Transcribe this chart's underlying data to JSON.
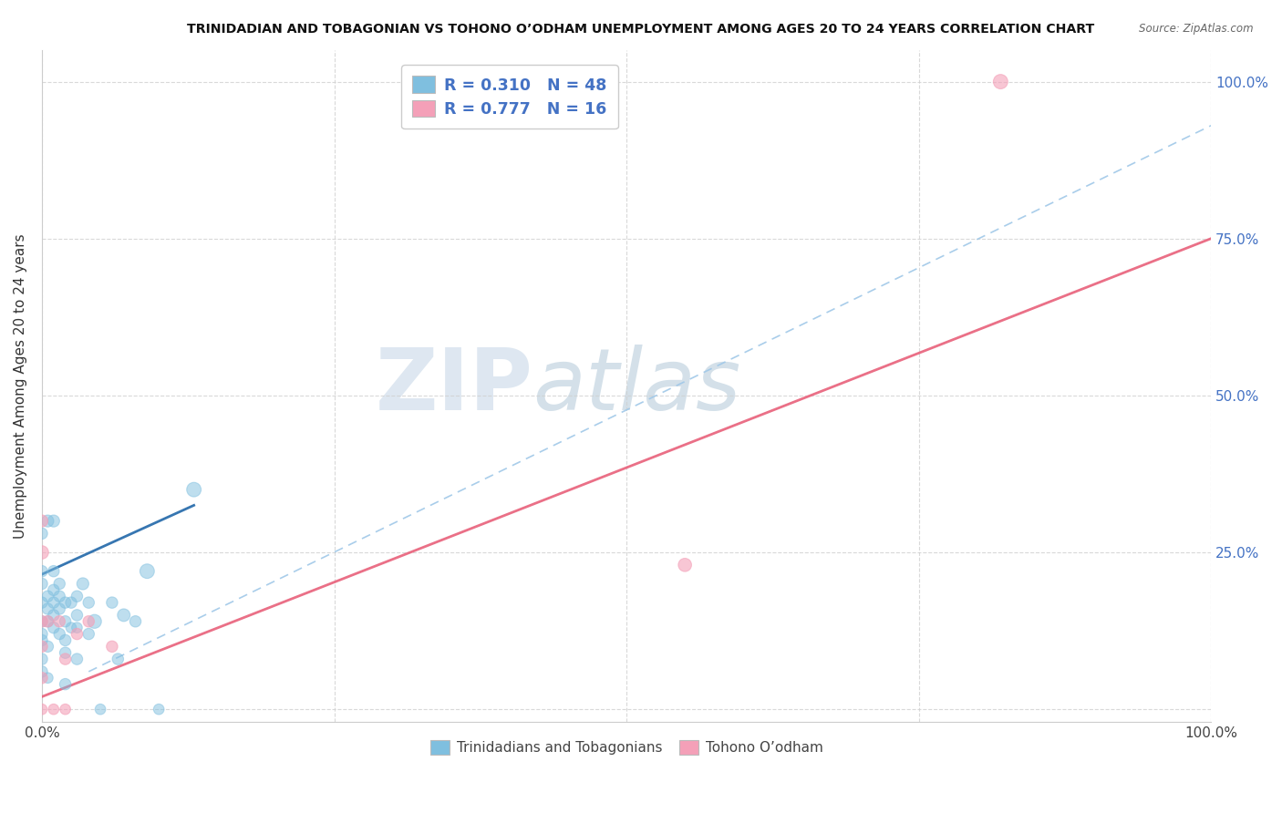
{
  "title": "TRINIDADIAN AND TOBAGONIAN VS TOHONO O’ODHAM UNEMPLOYMENT AMONG AGES 20 TO 24 YEARS CORRELATION CHART",
  "source": "Source: ZipAtlas.com",
  "ylabel": "Unemployment Among Ages 20 to 24 years",
  "legend_blue_r": "R = 0.310",
  "legend_blue_n": "N = 48",
  "legend_pink_r": "R = 0.777",
  "legend_pink_n": "N = 16",
  "legend_label_blue": "Trinidadians and Tobagonians",
  "legend_label_pink": "Tohono O’odham",
  "blue_scatter_x": [
    0.0,
    0.0,
    0.0,
    0.0,
    0.0,
    0.0,
    0.0,
    0.0,
    0.005,
    0.005,
    0.005,
    0.005,
    0.005,
    0.005,
    0.01,
    0.01,
    0.01,
    0.01,
    0.01,
    0.01,
    0.015,
    0.015,
    0.015,
    0.015,
    0.02,
    0.02,
    0.02,
    0.02,
    0.02,
    0.025,
    0.025,
    0.03,
    0.03,
    0.03,
    0.03,
    0.035,
    0.04,
    0.04,
    0.045,
    0.05,
    0.06,
    0.065,
    0.07,
    0.08,
    0.09,
    0.1,
    0.13,
    0.0
  ],
  "blue_scatter_y": [
    0.28,
    0.22,
    0.2,
    0.17,
    0.14,
    0.12,
    0.08,
    0.06,
    0.3,
    0.18,
    0.16,
    0.14,
    0.1,
    0.05,
    0.3,
    0.22,
    0.19,
    0.17,
    0.15,
    0.13,
    0.2,
    0.18,
    0.16,
    0.12,
    0.17,
    0.14,
    0.11,
    0.09,
    0.04,
    0.17,
    0.13,
    0.18,
    0.15,
    0.13,
    0.08,
    0.2,
    0.17,
    0.12,
    0.14,
    0.0,
    0.17,
    0.08,
    0.15,
    0.14,
    0.22,
    0.0,
    0.35,
    0.11
  ],
  "blue_scatter_size": [
    80,
    80,
    80,
    80,
    80,
    80,
    80,
    80,
    90,
    80,
    80,
    80,
    80,
    70,
    90,
    80,
    80,
    80,
    80,
    80,
    80,
    80,
    80,
    80,
    80,
    80,
    80,
    80,
    80,
    80,
    70,
    80,
    80,
    70,
    80,
    90,
    80,
    80,
    120,
    70,
    80,
    80,
    100,
    80,
    130,
    70,
    130,
    80
  ],
  "pink_scatter_x": [
    0.0,
    0.0,
    0.0,
    0.0,
    0.0,
    0.005,
    0.01,
    0.015,
    0.02,
    0.02,
    0.03,
    0.04,
    0.06,
    0.0,
    0.55,
    0.82
  ],
  "pink_scatter_y": [
    0.3,
    0.14,
    0.1,
    0.05,
    0.0,
    0.14,
    0.0,
    0.14,
    0.0,
    0.08,
    0.12,
    0.14,
    0.1,
    0.25,
    0.23,
    1.0
  ],
  "pink_scatter_size": [
    90,
    80,
    80,
    80,
    70,
    80,
    70,
    80,
    70,
    80,
    80,
    80,
    80,
    110,
    110,
    130
  ],
  "blue_solid_line_x": [
    0.0,
    0.13
  ],
  "blue_solid_line_y": [
    0.215,
    0.325
  ],
  "blue_dash_line_x": [
    0.04,
    1.0
  ],
  "blue_dash_line_y": [
    0.06,
    0.93
  ],
  "pink_solid_line_x": [
    0.0,
    1.0
  ],
  "pink_solid_line_y": [
    0.02,
    0.75
  ],
  "blue_color": "#7fbfdf",
  "pink_color": "#f4a0b8",
  "blue_line_color": "#2c6fad",
  "blue_dash_color": "#a0c8e8",
  "pink_line_color": "#e8607a",
  "grid_color": "#d0d0d0",
  "right_axis_color": "#4472c4",
  "xlim": [
    0.0,
    1.0
  ],
  "ylim": [
    -0.02,
    1.05
  ],
  "xticks": [
    0.0,
    0.25,
    0.5,
    0.75,
    1.0
  ],
  "yticks": [
    0.0,
    0.25,
    0.5,
    0.75,
    1.0
  ],
  "watermark_zip": "ZIP",
  "watermark_atlas": "atlas"
}
